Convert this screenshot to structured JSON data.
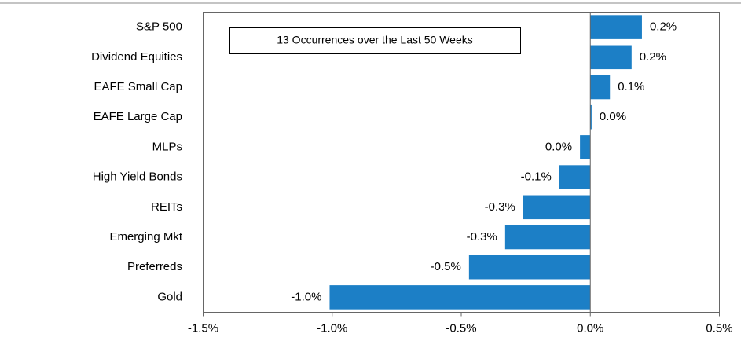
{
  "chart_data": {
    "type": "barh",
    "annotation": "13 Occurrences over the Last 50 Weeks",
    "categories": [
      "S&P 500",
      "Dividend Equities",
      "EAFE Small Cap",
      "EAFE Large Cap",
      "MLPs",
      "High Yield Bonds",
      "REITs",
      "Emerging Mkt",
      "Preferreds",
      "Gold"
    ],
    "values": [
      0.2,
      0.16,
      0.076,
      0.005,
      -0.04,
      -0.12,
      -0.26,
      -0.33,
      -0.47,
      -1.01
    ],
    "value_labels": [
      "0.2%",
      "0.2%",
      "0.1%",
      "0.0%",
      "0.0%",
      "-0.1%",
      "-0.3%",
      "-0.3%",
      "-0.5%",
      "-1.0%"
    ],
    "color": "#1c7fc6",
    "xlim": [
      -1.5,
      0.5
    ],
    "xticks": [
      {
        "value": -1.5,
        "label": "-1.5%"
      },
      {
        "value": -1.0,
        "label": "-1.0%"
      },
      {
        "value": -0.5,
        "label": "-0.5%"
      },
      {
        "value": 0.0,
        "label": "0.0%"
      },
      {
        "value": 0.5,
        "label": "0.5%"
      }
    ],
    "grid": false
  }
}
